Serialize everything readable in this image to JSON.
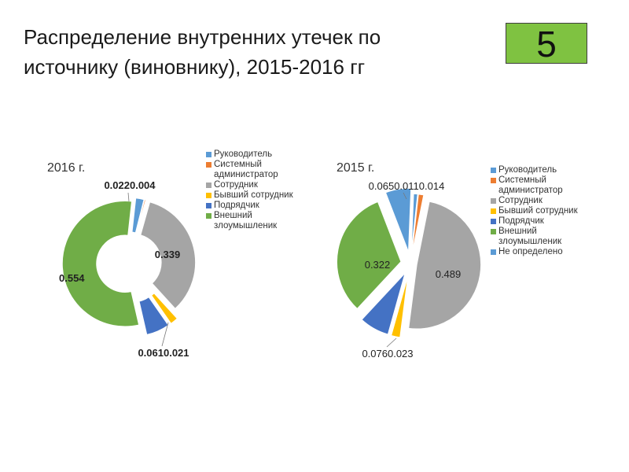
{
  "slide": {
    "title": "Распределение внутренних утечек по источнику (виновнику), 2015-2016 гг",
    "number": "5",
    "number_bg": "#7fc241"
  },
  "chart_data": [
    {
      "type": "pie",
      "variant": "doughnut-exploded",
      "title": "2016 г.",
      "categories": [
        "Руководитель",
        "Системный администратор",
        "Сотрудник",
        "Бывший сотрудник",
        "Подрядчик",
        "Внешний злоумышленик"
      ],
      "values": [
        0.022,
        0.004,
        0.339,
        0.021,
        0.061,
        0.554
      ],
      "colors": [
        "#5b9bd5",
        "#ed7d31",
        "#a5a5a5",
        "#ffc000",
        "#4472c4",
        "#70ad47"
      ],
      "labels": [
        "0.022",
        "0.004",
        "0.339",
        "0.021",
        "0.061",
        "0.554"
      ],
      "legend_position": "right"
    },
    {
      "type": "pie",
      "variant": "pie-exploded",
      "title": "2015 г.",
      "categories": [
        "Руководитель",
        "Системный администратор",
        "Сотрудник",
        "Бывший сотрудник",
        "Подрядчик",
        "Внешний злоумышленик",
        "Не определено"
      ],
      "values": [
        0.011,
        0.014,
        0.489,
        0.023,
        0.076,
        0.322,
        0.065
      ],
      "colors": [
        "#5b9bd5",
        "#ed7d31",
        "#a5a5a5",
        "#ffc000",
        "#4472c4",
        "#70ad47",
        "#5b9bd5"
      ],
      "labels": [
        "0.011",
        "0.014",
        "0.489",
        "0.023",
        "0.076",
        "0.322",
        "0.065"
      ],
      "legend_position": "right"
    }
  ],
  "legend16": [
    "Руководитель",
    "Системный администратор",
    "Сотрудник",
    "Бывший сотрудник",
    "Подрядчик",
    "Внешний злоумышленик"
  ],
  "legend15": [
    "Руководитель",
    "Системный администратор",
    "Сотрудник",
    "Бывший сотрудник",
    "Подрядчик",
    "Внешний злоумышленик",
    "Не определено"
  ]
}
